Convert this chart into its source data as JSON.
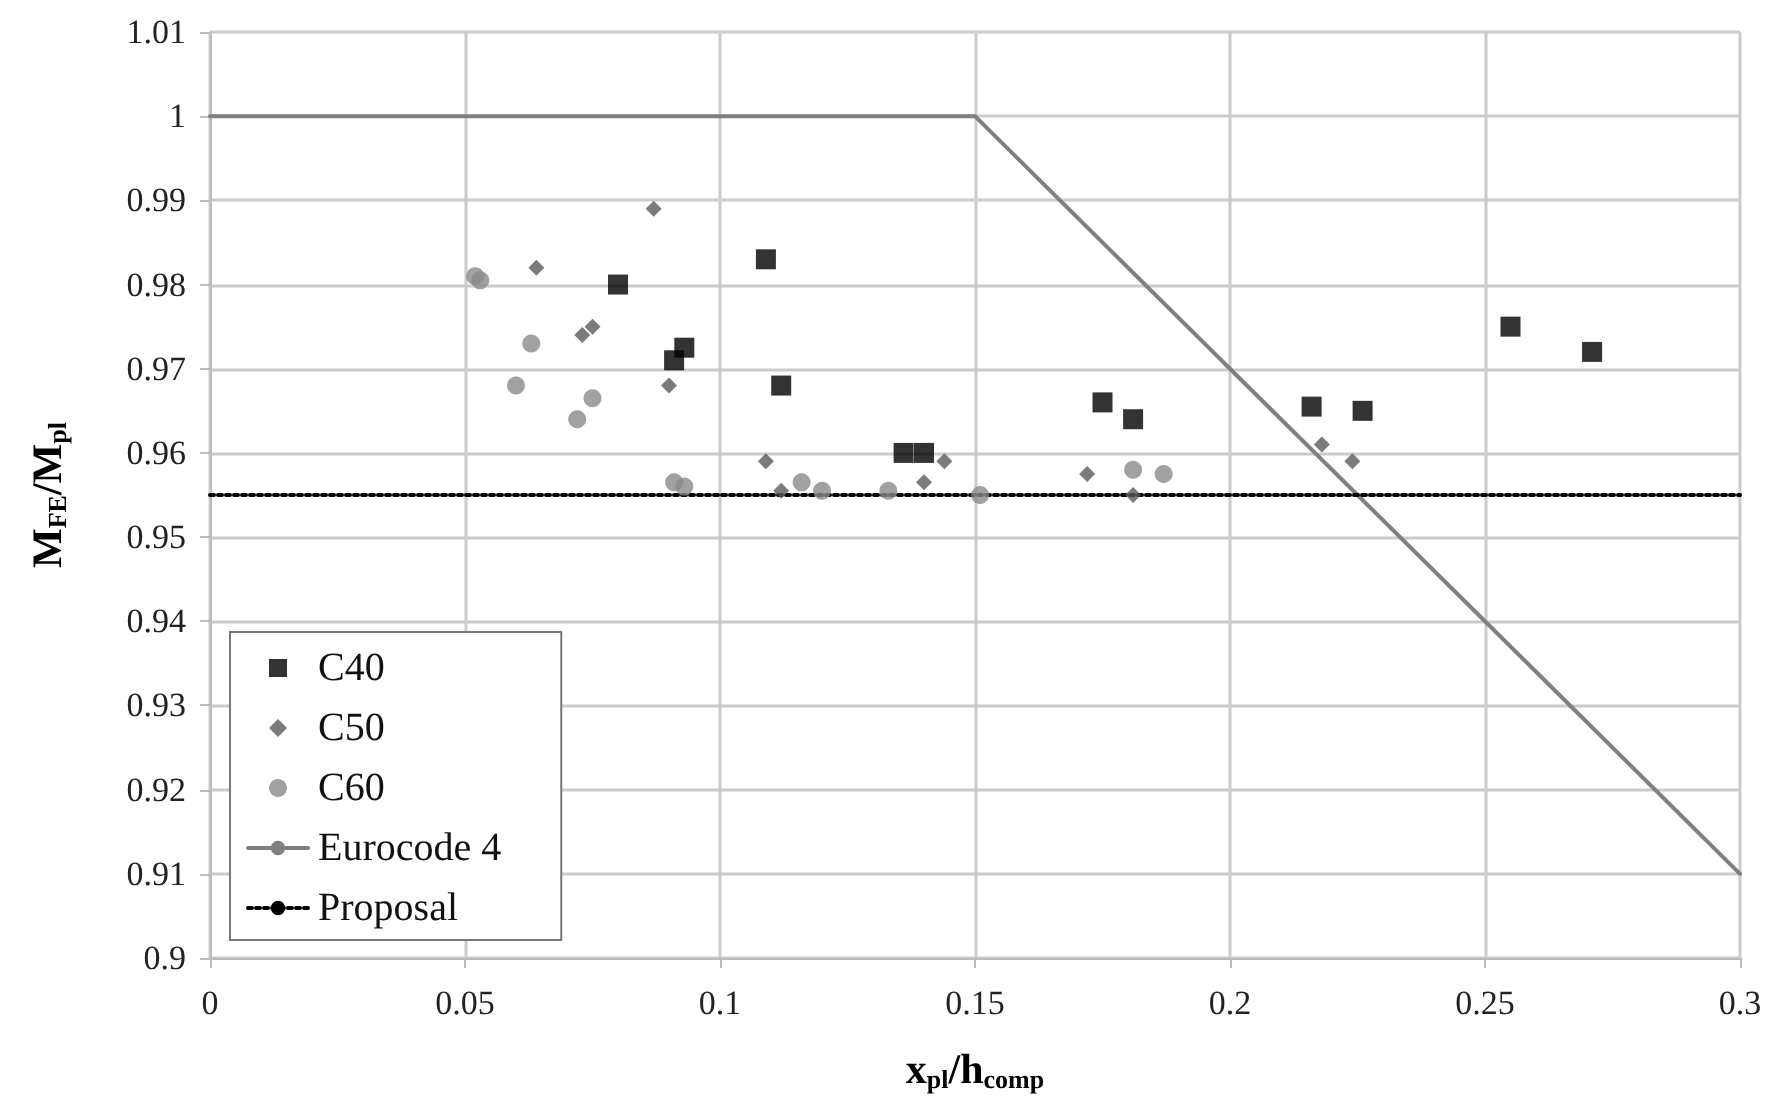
{
  "chart_data": {
    "type": "scatter",
    "xlabel": "x$_{pl}$/h$_{comp}$",
    "ylabel": "M$_{FE}$/M$_{pl}$",
    "xlim": [
      0,
      0.3
    ],
    "xticks": [
      0,
      0.05,
      0.1,
      0.15,
      0.2,
      0.25,
      0.3
    ],
    "ylim": [
      0.9,
      1.01
    ],
    "yticks": [
      0.9,
      0.91,
      0.92,
      0.93,
      0.94,
      0.95,
      0.96,
      0.97,
      0.98,
      0.99,
      1,
      1.01
    ],
    "grid": true,
    "legend": "bottom left",
    "series": [
      {
        "name": "C40",
        "type": "scatter",
        "marker": "square",
        "color": "#000000",
        "x": [
          0.08,
          0.091,
          0.093,
          0.109,
          0.112,
          0.136,
          0.14,
          0.175,
          0.181,
          0.216,
          0.226,
          0.255,
          0.271
        ],
        "values": [
          0.98,
          0.971,
          0.9725,
          0.983,
          0.968,
          0.96,
          0.96,
          0.966,
          0.964,
          0.9655,
          0.965,
          0.975,
          0.972
        ]
      },
      {
        "name": "C50",
        "type": "scatter",
        "marker": "diamond",
        "color": "#5a5a5a",
        "x": [
          0.064,
          0.073,
          0.075,
          0.087,
          0.09,
          0.109,
          0.112,
          0.14,
          0.144,
          0.172,
          0.181,
          0.218,
          0.224
        ],
        "values": [
          0.982,
          0.974,
          0.975,
          0.989,
          0.968,
          0.959,
          0.9555,
          0.9565,
          0.959,
          0.9575,
          0.955,
          0.961,
          0.959
        ]
      },
      {
        "name": "C60",
        "type": "scatter",
        "marker": "circle",
        "color": "#8a8a8a",
        "x": [
          0.052,
          0.053,
          0.06,
          0.063,
          0.072,
          0.075,
          0.091,
          0.093,
          0.116,
          0.12,
          0.133,
          0.151,
          0.181,
          0.187
        ],
        "values": [
          0.981,
          0.9805,
          0.968,
          0.973,
          0.964,
          0.9665,
          0.9565,
          0.956,
          0.9565,
          0.9555,
          0.9555,
          0.955,
          0.958,
          0.9575
        ]
      },
      {
        "name": "Eurocode 4",
        "type": "line",
        "marker": "none",
        "line_style": "solid",
        "color": "#808080",
        "x": [
          0,
          0.15,
          0.3
        ],
        "values": [
          1,
          1,
          0.91
        ]
      },
      {
        "name": "Proposal",
        "type": "line",
        "marker": "none",
        "line_style": "dotted",
        "color": "#000000",
        "x": [
          0,
          0.3
        ],
        "values": [
          0.955,
          0.955
        ]
      }
    ]
  }
}
